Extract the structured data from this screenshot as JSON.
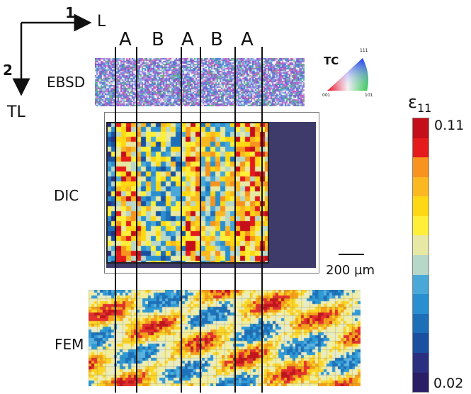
{
  "axes": {
    "direction_1_number": "1",
    "direction_1_label": "L",
    "direction_2_number": "2",
    "direction_2_label": "TL"
  },
  "zones": [
    "A",
    "B",
    "A",
    "B",
    "A"
  ],
  "rows": {
    "ebsd_label": "EBSD",
    "dic_label": "DIC",
    "fem_label": "FEM"
  },
  "ipf_legend": {
    "title": "TC",
    "corner_top": "111",
    "corner_left": "001",
    "corner_right": "101"
  },
  "scale_bar": {
    "label": "200 µm"
  },
  "colorbar": {
    "symbol": "ε",
    "subscript": "11",
    "max_label": "0.11",
    "min_label": "0.02",
    "colors": [
      "#c40e19",
      "#e41a1c",
      "#f7931e",
      "#fbb821",
      "#ffd814",
      "#ffef39",
      "#e6e8a3",
      "#b7d7c9",
      "#4aa8d8",
      "#2a8fd0",
      "#1d6fb8",
      "#1a50a0",
      "#2b2f80",
      "#2a1e66"
    ]
  }
}
